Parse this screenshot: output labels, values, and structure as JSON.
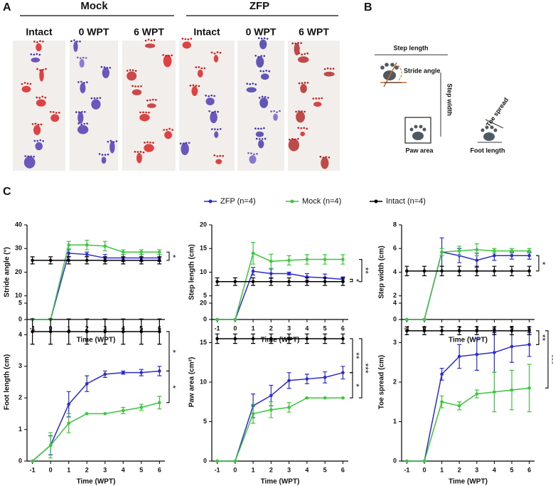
{
  "panel_a": {
    "label": "A",
    "groups": [
      {
        "title": "Mock",
        "columns": [
          "Intact",
          "0 WPT",
          "6 WPT"
        ]
      },
      {
        "title": "ZFP",
        "columns": [
          "Intact",
          "0 WPT",
          "6 WPT"
        ]
      }
    ]
  },
  "panel_b": {
    "label": "B",
    "step_length": "Step length",
    "stride_angle": "Stride angle",
    "step_width": "Step width",
    "paw_area": "Paw area",
    "toe_spread": "Toe spread",
    "foot_length": "Foot length"
  },
  "panel_c": {
    "label": "C"
  },
  "chart_data": [
    {
      "type": "line",
      "y_label": "Stride angle (°)",
      "x_label": "Time (WPT)",
      "x": [
        -1,
        0,
        1,
        2,
        3,
        4,
        5,
        6
      ],
      "xlim": [
        -1.3,
        6.3
      ],
      "xticks": [
        -1,
        0,
        1,
        2,
        3,
        4,
        5,
        6
      ],
      "ylim": [
        0,
        40
      ],
      "yticks": [
        0,
        10,
        20,
        30,
        40
      ],
      "series": [
        {
          "name": "ZFP (n=4)",
          "color": "#2b2bd0",
          "values": [
            0,
            0,
            28,
            27.5,
            26,
            26,
            26,
            26
          ],
          "errors": [
            0,
            0,
            1.5,
            1,
            1.5,
            1.5,
            1.5,
            1.5
          ]
        },
        {
          "name": "Mock (n=4)",
          "color": "#3cc63c",
          "values": [
            0,
            0,
            31.5,
            31.5,
            31,
            28.5,
            28.5,
            28.5
          ],
          "errors": [
            0,
            0,
            1.5,
            2,
            2,
            1,
            1,
            1
          ]
        },
        {
          "name": "Intact (n=4)",
          "color": "#000000",
          "values": [
            25,
            25,
            25,
            25,
            25,
            25,
            25,
            25
          ],
          "errors": [
            1.5,
            1.5,
            1.5,
            1.5,
            1.5,
            1.5,
            1.5,
            1.5
          ]
        }
      ],
      "annotations": [
        "*"
      ]
    },
    {
      "type": "line",
      "y_label": "Step length (cm)",
      "x_label": "Time (WPT)",
      "x": [
        -1,
        0,
        1,
        2,
        3,
        4,
        5,
        6
      ],
      "xlim": [
        -1.3,
        6.3
      ],
      "xticks": [
        -1,
        0,
        1,
        2,
        3,
        4,
        5,
        6
      ],
      "ylim": [
        0,
        20
      ],
      "yticks": [
        0,
        5,
        10,
        15,
        20
      ],
      "series": [
        {
          "color": "#2b2bd0",
          "values": [
            0,
            0,
            10.2,
            9.7,
            9.7,
            9,
            8.8,
            8.5
          ],
          "errors": [
            0,
            0,
            0.8,
            1,
            0.3,
            0.7,
            0.8,
            0.5
          ]
        },
        {
          "color": "#3cc63c",
          "values": [
            0,
            0,
            14,
            12.3,
            12.5,
            12.7,
            12.7,
            12.7
          ],
          "errors": [
            0,
            0,
            2.3,
            1.5,
            1,
            1,
            1,
            1
          ]
        },
        {
          "color": "#000000",
          "values": [
            8,
            8,
            8,
            8,
            8,
            8,
            8,
            8
          ],
          "errors": [
            0.8,
            0.8,
            0.8,
            0.8,
            0.8,
            0.8,
            0.8,
            0.8
          ]
        }
      ],
      "annotations": [
        "*",
        "**"
      ]
    },
    {
      "type": "line",
      "y_label": "Step width (cm)",
      "x_label": "Time (WPT)",
      "x": [
        -1,
        0,
        1,
        2,
        3,
        4,
        5,
        6
      ],
      "xlim": [
        -1.3,
        6.3
      ],
      "xticks": [
        -1,
        0,
        1,
        2,
        3,
        4,
        5,
        6
      ],
      "ylim": [
        0,
        8
      ],
      "yticks": [
        0,
        2,
        4,
        6,
        8
      ],
      "series": [
        {
          "color": "#2b2bd0",
          "values": [
            0,
            0,
            5.7,
            5.4,
            5,
            5.4,
            5.4,
            5.4
          ],
          "errors": [
            0,
            0,
            1.2,
            0.6,
            0.6,
            0.4,
            0.3,
            0.3
          ]
        },
        {
          "color": "#3cc63c",
          "values": [
            0,
            0,
            5.7,
            5.8,
            5.9,
            5.8,
            5.8,
            5.8
          ],
          "errors": [
            0,
            0,
            0.3,
            0.4,
            0.5,
            0.2,
            0.2,
            0.2
          ]
        },
        {
          "color": "#000000",
          "values": [
            4.1,
            4.1,
            4.1,
            4.1,
            4.1,
            4.1,
            4.1,
            4.1
          ],
          "errors": [
            0.4,
            0.4,
            0.4,
            0.4,
            0.4,
            0.4,
            0.4,
            0.4
          ]
        }
      ],
      "annotations": [
        "*"
      ]
    },
    {
      "type": "line",
      "y_label": "Foot length (cm)",
      "x_label": "Time (WPT)",
      "x": [
        -1,
        0,
        1,
        2,
        3,
        4,
        5,
        6
      ],
      "xlim": [
        -1.3,
        6.3
      ],
      "xticks": [
        -1,
        0,
        1,
        2,
        3,
        4,
        5,
        6
      ],
      "ylim": [
        0,
        5
      ],
      "yticks": [
        0,
        1,
        2,
        3,
        4,
        5
      ],
      "series": [
        {
          "color": "#2b2bd0",
          "values": [
            0,
            0.5,
            1.8,
            2.45,
            2.75,
            2.8,
            2.8,
            2.85
          ],
          "errors": [
            0,
            0.3,
            0.4,
            0.25,
            0.1,
            0.05,
            0.1,
            0.15
          ]
        },
        {
          "color": "#3cc63c",
          "values": [
            0,
            0.5,
            1.2,
            1.5,
            1.5,
            1.6,
            1.7,
            1.85
          ],
          "errors": [
            0,
            0.4,
            0.3,
            0,
            0,
            0.1,
            0.1,
            0.2
          ]
        },
        {
          "color": "#000000",
          "values": [
            4.1,
            4.1,
            4.1,
            4.1,
            4.1,
            4.1,
            4.1,
            4.1
          ],
          "errors": [
            0.4,
            0.4,
            0.4,
            0.4,
            0.4,
            0.4,
            0.4,
            0.4
          ]
        }
      ],
      "annotations": [
        "*",
        "*"
      ]
    },
    {
      "type": "line",
      "y_label": "Paw area (cm²)",
      "x_label": "Time (WPT)",
      "x": [
        -1,
        0,
        1,
        2,
        3,
        4,
        5,
        6
      ],
      "xlim": [
        -1.3,
        6.3
      ],
      "xticks": [
        -1,
        0,
        1,
        2,
        3,
        4,
        5,
        6
      ],
      "ylim": [
        0,
        20
      ],
      "yticks": [
        0,
        5,
        10,
        15,
        20
      ],
      "series": [
        {
          "color": "#2b2bd0",
          "values": [
            0,
            0,
            7,
            8.3,
            10.2,
            10.4,
            10.6,
            11.2
          ],
          "errors": [
            0,
            0,
            1.5,
            1.3,
            1,
            0.6,
            0.7,
            0.8
          ]
        },
        {
          "color": "#3cc63c",
          "values": [
            0,
            0,
            6,
            6.5,
            6.8,
            8,
            8,
            8
          ],
          "errors": [
            0,
            0,
            1.2,
            1,
            0.6,
            0,
            0,
            0
          ]
        },
        {
          "color": "#000000",
          "values": [
            15.5,
            15.5,
            15.5,
            15.5,
            15.5,
            15.5,
            15.5,
            15.5
          ],
          "errors": [
            0.6,
            0.6,
            0.6,
            0.6,
            0.6,
            0.6,
            0.6,
            0.6
          ]
        }
      ],
      "annotations": [
        "**",
        "*",
        "***"
      ]
    },
    {
      "type": "line",
      "y_label": "Toe spread (cm)",
      "x_label": "Time (WPT)",
      "x": [
        -1,
        0,
        1,
        2,
        3,
        4,
        5,
        6
      ],
      "xlim": [
        -1.3,
        6.3
      ],
      "xticks": [
        -1,
        0,
        1,
        2,
        3,
        4,
        5,
        6
      ],
      "ylim": [
        0,
        4
      ],
      "yticks": [
        0,
        1,
        2,
        3,
        4
      ],
      "series": [
        {
          "color": "#2b2bd0",
          "values": [
            0,
            0,
            2.2,
            2.65,
            2.7,
            2.75,
            2.9,
            2.95
          ],
          "errors": [
            0,
            0,
            0.15,
            0.3,
            0.4,
            0.5,
            0.4,
            0.3
          ]
        },
        {
          "color": "#3cc63c",
          "values": [
            0,
            0,
            1.5,
            1.4,
            1.7,
            1.75,
            1.8,
            1.85
          ],
          "errors": [
            0,
            0,
            0.15,
            0.1,
            0.1,
            0.5,
            0.5,
            0.6
          ]
        },
        {
          "color": "#000000",
          "values": [
            3.3,
            3.3,
            3.3,
            3.3,
            3.3,
            3.3,
            3.3,
            3.3
          ],
          "errors": [
            0.1,
            0.1,
            0.1,
            0.1,
            0.1,
            0.1,
            0.1,
            0.1
          ]
        }
      ],
      "annotations": [
        "**",
        "***"
      ]
    }
  ]
}
